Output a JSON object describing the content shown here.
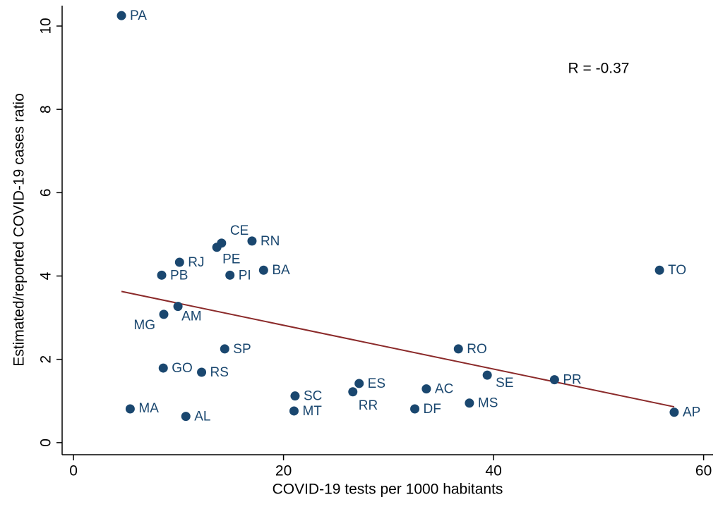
{
  "chart_data": {
    "type": "scatter",
    "x_label": "COVID-19 tests per 1000 habitants",
    "y_label": "Estimated/reported COVID-19 cases ratio",
    "annotation": "R = -0.37",
    "color": "#1a476f",
    "labels": [
      "PA",
      "CE",
      "PE",
      "RN",
      "RJ",
      "BA",
      "TO",
      "PB",
      "PI",
      "AM",
      "MG",
      "SP",
      "RO",
      "GO",
      "RS",
      "SE",
      "PR",
      "ES",
      "AC",
      "RR",
      "SC",
      "MS",
      "MA",
      "DF",
      "MT",
      "AP",
      "AL"
    ],
    "x": [
      4.57,
      14.1,
      13.65,
      17.0,
      10.1,
      18.1,
      55.8,
      8.4,
      14.9,
      9.95,
      8.6,
      14.4,
      36.65,
      8.55,
      12.2,
      39.4,
      45.8,
      27.2,
      33.6,
      26.6,
      21.1,
      37.7,
      5.4,
      32.5,
      21.0,
      57.2,
      10.7
    ],
    "values": [
      10.25,
      4.79,
      4.69,
      4.84,
      4.33,
      4.14,
      4.14,
      4.02,
      4.02,
      3.27,
      3.08,
      2.25,
      2.25,
      1.79,
      1.69,
      1.62,
      1.51,
      1.42,
      1.29,
      1.22,
      1.12,
      0.95,
      0.81,
      0.81,
      0.76,
      0.73,
      0.63
    ],
    "trend_line": {
      "x": [
        4.57,
        57.2
      ],
      "y": [
        3.63,
        0.86
      ],
      "color": "#8b2a2a"
    },
    "xlim": [
      -1.08,
      60.9
    ],
    "ylim": [
      -0.29,
      10.49
    ],
    "xticks": [
      0,
      20,
      40,
      60
    ],
    "yticks": [
      0,
      2,
      4,
      6,
      8,
      10
    ]
  }
}
